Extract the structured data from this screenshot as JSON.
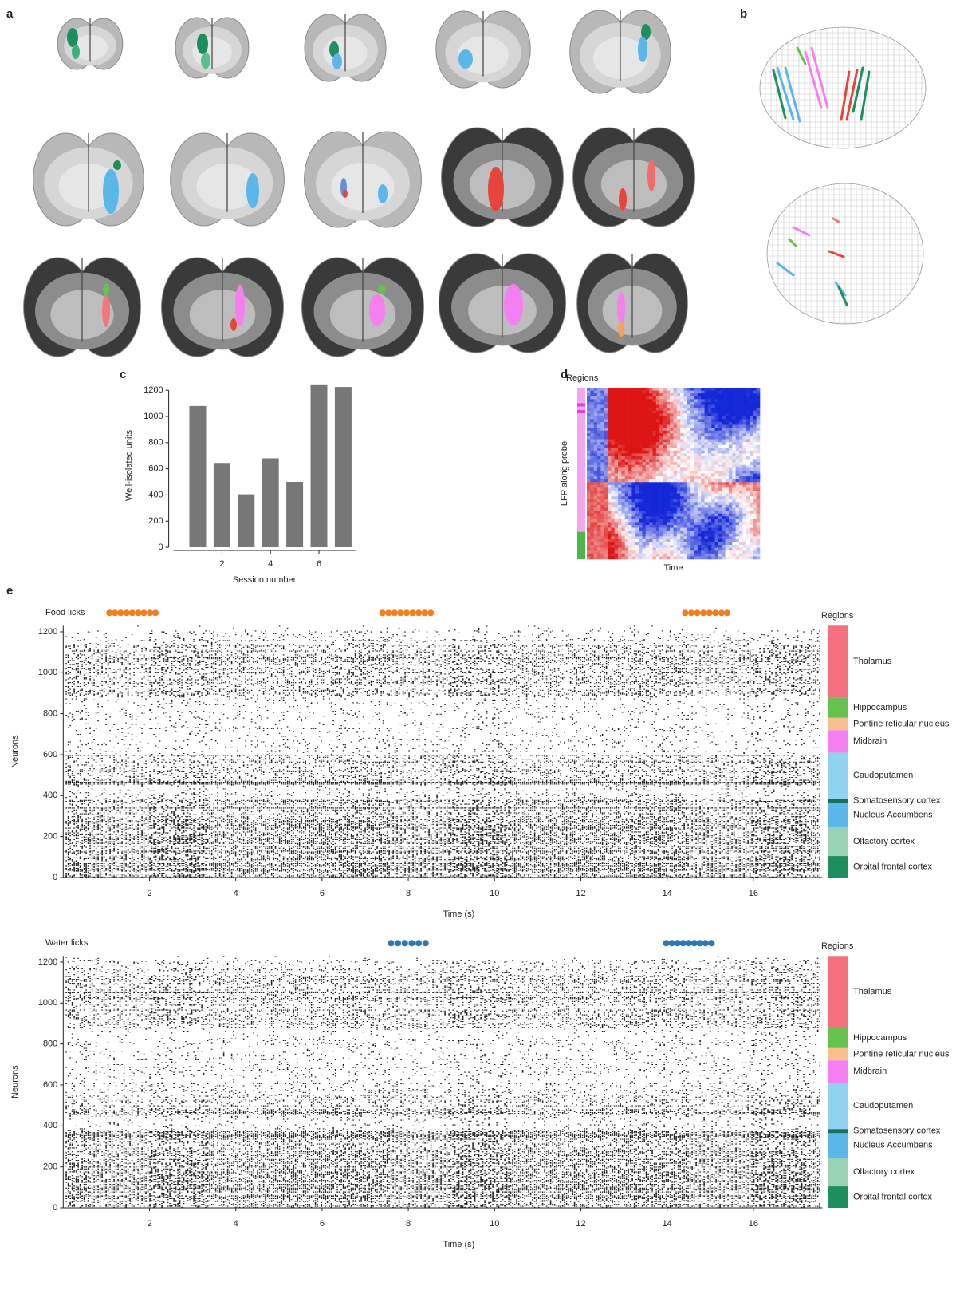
{
  "panel_labels": [
    "a",
    "b",
    "c",
    "d",
    "e"
  ],
  "chart_data": [
    {
      "type": "bar",
      "xlabel": "Session number",
      "ylabel": "Well-isolated units",
      "x": [
        1,
        2,
        3,
        4,
        5,
        6,
        7
      ],
      "values": [
        1080,
        645,
        405,
        680,
        500,
        1245,
        1225
      ],
      "color": "#777777",
      "xlim": [
        0,
        7.5
      ],
      "xticks": [
        2,
        4,
        6
      ],
      "ylim": [
        0,
        1250
      ],
      "yticks": [
        0,
        200,
        400,
        600,
        800,
        1000,
        1200
      ]
    },
    {
      "type": "heatmap",
      "title": "Regions",
      "ylabel": "LFP along probe",
      "xlabel": "Time"
    },
    {
      "type": "raster",
      "event_label": "Food licks",
      "event_color": "#f07f1e",
      "event_times": [
        1.07,
        1.2,
        1.33,
        1.47,
        1.6,
        1.74,
        1.87,
        2.01,
        2.14,
        7.4,
        7.54,
        7.68,
        7.82,
        7.96,
        8.1,
        8.24,
        8.38,
        8.52,
        14.42,
        14.56,
        14.7,
        14.84,
        14.98,
        15.12,
        15.26,
        15.39
      ],
      "xlabel": "Time (s)",
      "ylabel": "Neurons",
      "xlim": [
        0,
        17.6
      ],
      "xticks": [
        2,
        4,
        6,
        8,
        10,
        12,
        14,
        16
      ],
      "ylim": [
        0,
        1230
      ],
      "yticks": [
        0,
        200,
        400,
        600,
        800,
        1000,
        1200
      ],
      "regions_title": "Regions",
      "regions": [
        {
          "name": "Orbital frontal cortex",
          "color": "#1d8f5e",
          "range": [
            0,
            105
          ]
        },
        {
          "name": "Olfactory cortex",
          "color": "#98d1b4",
          "range": [
            105,
            245
          ]
        },
        {
          "name": "Nucleus Accumbens",
          "color": "#5bb6ea",
          "range": [
            245,
            365
          ]
        },
        {
          "name": "Somatosensory cortex",
          "color": "#17705c",
          "range": [
            365,
            385
          ]
        },
        {
          "name": "Caudoputamen",
          "color": "#90d2ef",
          "range": [
            385,
            610
          ]
        },
        {
          "name": "Midbrain",
          "color": "#f47ff0",
          "range": [
            610,
            720
          ]
        },
        {
          "name": "Pontine reticular nucleus",
          "color": "#f8c08c",
          "range": [
            720,
            780
          ]
        },
        {
          "name": "Hippocampus",
          "color": "#66c24e",
          "range": [
            780,
            880
          ]
        },
        {
          "name": "Thalamus",
          "color": "#f5707e",
          "range": [
            880,
            1230
          ]
        }
      ]
    },
    {
      "type": "raster",
      "event_label": "Water licks",
      "event_color": "#2a78b6",
      "event_times": [
        7.6,
        7.76,
        7.92,
        8.08,
        8.24,
        8.4,
        13.98,
        14.11,
        14.24,
        14.37,
        14.5,
        14.63,
        14.76,
        14.89,
        15.03
      ],
      "xlabel": "Time (s)",
      "ylabel": "Neurons",
      "xlim": [
        0,
        17.6
      ],
      "xticks": [
        2,
        4,
        6,
        8,
        10,
        12,
        14,
        16
      ],
      "ylim": [
        0,
        1230
      ],
      "yticks": [
        0,
        200,
        400,
        600,
        800,
        1000,
        1200
      ],
      "regions_title": "Regions",
      "regions": [
        {
          "name": "Orbital frontal cortex",
          "color": "#1d8f5e",
          "range": [
            0,
            105
          ]
        },
        {
          "name": "Olfactory cortex",
          "color": "#98d1b4",
          "range": [
            105,
            245
          ]
        },
        {
          "name": "Nucleus Accumbens",
          "color": "#5bb6ea",
          "range": [
            245,
            365
          ]
        },
        {
          "name": "Somatosensory cortex",
          "color": "#17705c",
          "range": [
            365,
            385
          ]
        },
        {
          "name": "Caudoputamen",
          "color": "#90d2ef",
          "range": [
            385,
            610
          ]
        },
        {
          "name": "Midbrain",
          "color": "#f47ff0",
          "range": [
            610,
            720
          ]
        },
        {
          "name": "Pontine reticular nucleus",
          "color": "#f8c08c",
          "range": [
            720,
            780
          ]
        },
        {
          "name": "Hippocampus",
          "color": "#66c24e",
          "range": [
            780,
            880
          ]
        },
        {
          "name": "Thalamus",
          "color": "#f5707e",
          "range": [
            880,
            1230
          ]
        }
      ]
    }
  ]
}
